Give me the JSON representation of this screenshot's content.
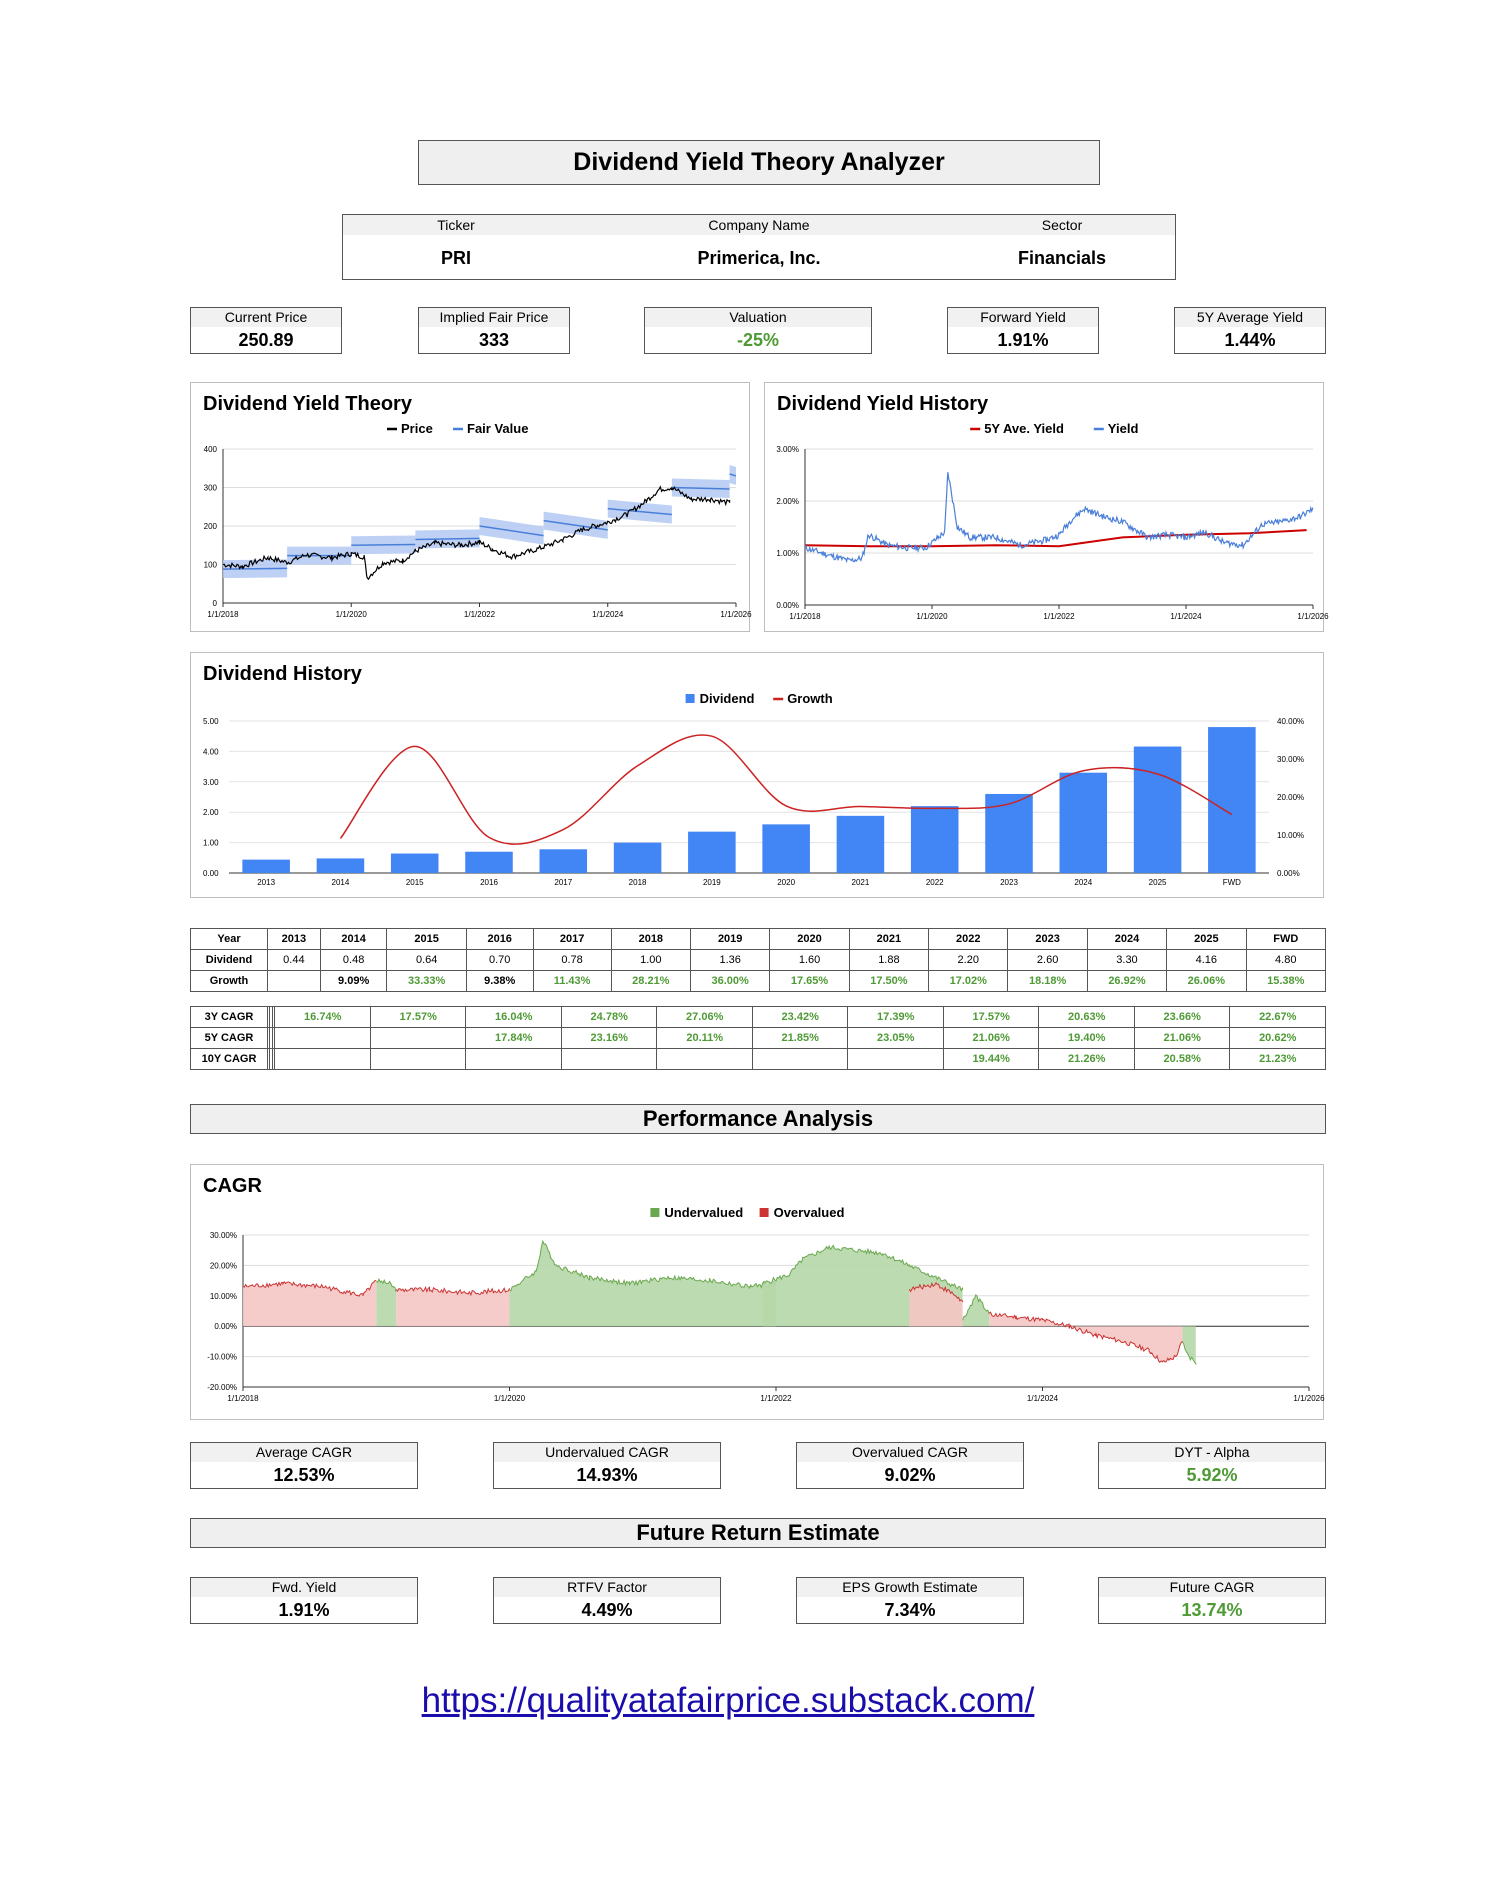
{
  "title": "Dividend Yield Theory Analyzer",
  "info": {
    "ticker_label": "Ticker",
    "ticker": "PRI",
    "company_label": "Company Name",
    "company": "Primerica, Inc.",
    "sector_label": "Sector",
    "sector": "Financials"
  },
  "metrics": [
    {
      "label": "Current Price",
      "value": "250.89"
    },
    {
      "label": "Implied Fair Price",
      "value": "333"
    },
    {
      "label": "Valuation",
      "value": "-25%"
    },
    {
      "label": "Forward Yield",
      "value": "1.91%"
    },
    {
      "label": "5Y Average Yield",
      "value": "1.44%"
    }
  ],
  "chart_data": [
    {
      "id": "dyt",
      "type": "line",
      "title": "Dividend Yield Theory",
      "legend": [
        "Price",
        "Fair Value"
      ],
      "legend_position": "top",
      "x_ticks": [
        "1/1/2018",
        "1/1/2020",
        "1/1/2022",
        "1/1/2024",
        "1/1/2026"
      ],
      "y_ticks": [
        "0",
        "100",
        "200",
        "300",
        "400"
      ],
      "xlim": [
        2018,
        2026
      ],
      "ylim": [
        0,
        400
      ],
      "grid": true,
      "series": [
        {
          "name": "Price",
          "color": "#000000",
          "x": [
            2018.0,
            2018.3,
            2018.7,
            2019.0,
            2019.3,
            2019.7,
            2020.0,
            2020.2,
            2020.25,
            2020.5,
            2020.8,
            2021.0,
            2021.3,
            2021.7,
            2022.0,
            2022.2,
            2022.5,
            2022.8,
            2023.0,
            2023.3,
            2023.6,
            2023.8,
            2024.0,
            2024.3,
            2024.6,
            2024.8,
            2025.0,
            2025.3,
            2025.6,
            2025.9
          ],
          "y": [
            100,
            95,
            118,
            105,
            125,
            118,
            128,
            120,
            65,
            105,
            110,
            135,
            155,
            150,
            158,
            140,
            120,
            135,
            145,
            165,
            190,
            200,
            210,
            230,
            265,
            295,
            300,
            270,
            270,
            260
          ]
        },
        {
          "name": "Fair Value",
          "color": "#4a7fd9",
          "x": [
            2018.0,
            2019.0,
            2019.0,
            2020.0,
            2020.0,
            2021.0,
            2021.0,
            2022.0,
            2022.0,
            2023.0,
            2023.0,
            2024.0,
            2024.0,
            2025.0,
            2025.0,
            2025.9,
            2025.9,
            2026.0
          ],
          "y": [
            88,
            90,
            123,
            123,
            150,
            152,
            165,
            168,
            200,
            175,
            214,
            190,
            245,
            230,
            300,
            296,
            335,
            330
          ]
        }
      ]
    },
    {
      "id": "yield",
      "type": "line",
      "title": "Dividend Yield History",
      "legend": [
        "5Y Ave. Yield",
        "Yield"
      ],
      "legend_position": "top",
      "x_ticks": [
        "1/1/2018",
        "1/1/2020",
        "1/1/2022",
        "1/1/2024",
        "1/1/2026"
      ],
      "y_ticks": [
        "0.00%",
        "1.00%",
        "2.00%",
        "3.00%"
      ],
      "xlim": [
        2018,
        2026
      ],
      "ylim": [
        0,
        3
      ],
      "grid": true,
      "series": [
        {
          "name": "5Y Ave. Yield",
          "color": "#cc0000",
          "x": [
            2018.0,
            2019.0,
            2020.0,
            2021.0,
            2022.0,
            2023.0,
            2024.0,
            2025.0,
            2025.9
          ],
          "y": [
            1.15,
            1.13,
            1.13,
            1.15,
            1.13,
            1.3,
            1.35,
            1.38,
            1.44
          ]
        },
        {
          "name": "Yield",
          "color": "#4a7fd9",
          "x": [
            2018.0,
            2018.4,
            2018.7,
            2018.9,
            2019.0,
            2019.3,
            2019.6,
            2019.9,
            2020.1,
            2020.2,
            2020.25,
            2020.4,
            2020.6,
            2021.0,
            2021.4,
            2021.8,
            2022.0,
            2022.2,
            2022.4,
            2022.7,
            2023.0,
            2023.4,
            2023.7,
            2024.0,
            2024.3,
            2024.6,
            2024.9,
            2025.2,
            2025.5,
            2025.8,
            2026.0
          ],
          "y": [
            1.1,
            0.95,
            0.85,
            0.9,
            1.35,
            1.15,
            1.1,
            1.1,
            1.3,
            1.4,
            2.55,
            1.5,
            1.3,
            1.3,
            1.15,
            1.25,
            1.35,
            1.65,
            1.85,
            1.7,
            1.6,
            1.3,
            1.35,
            1.3,
            1.4,
            1.2,
            1.15,
            1.55,
            1.6,
            1.7,
            1.85
          ]
        }
      ]
    },
    {
      "id": "divhist",
      "type": "bar",
      "title": "Dividend History",
      "legend": [
        "Dividend",
        "Growth"
      ],
      "legend_position": "top",
      "categories": [
        "2013",
        "2014",
        "2015",
        "2016",
        "2017",
        "2018",
        "2019",
        "2020",
        "2021",
        "2022",
        "2023",
        "2024",
        "2025",
        "FWD"
      ],
      "y_ticks": [
        "0.00",
        "1.00",
        "2.00",
        "3.00",
        "4.00",
        "5.00"
      ],
      "y2_ticks": [
        "0.00%",
        "10.00%",
        "20.00%",
        "30.00%",
        "40.00%"
      ],
      "ylim": [
        0,
        5
      ],
      "y2lim": [
        0,
        40
      ],
      "series": [
        {
          "name": "Dividend",
          "type": "bar",
          "color": "#4285f4",
          "values": [
            0.44,
            0.48,
            0.64,
            0.7,
            0.78,
            1.0,
            1.36,
            1.6,
            1.88,
            2.2,
            2.6,
            3.3,
            4.16,
            4.8
          ]
        },
        {
          "name": "Growth",
          "type": "line",
          "axis": "right",
          "color": "#cc2222",
          "values": [
            null,
            9.09,
            33.33,
            9.38,
            11.43,
            28.21,
            36.0,
            17.65,
            17.5,
            17.02,
            18.18,
            26.92,
            26.06,
            15.38
          ]
        }
      ]
    },
    {
      "id": "cagr",
      "type": "area",
      "title": "CAGR",
      "legend": [
        "Undervalued",
        "Overvalued"
      ],
      "legend_position": "top",
      "x_ticks": [
        "1/1/2018",
        "1/1/2020",
        "1/1/2022",
        "1/1/2024",
        "1/1/2026"
      ],
      "y_ticks": [
        "-20.00%",
        "-10.00%",
        "0.00%",
        "10.00%",
        "20.00%",
        "30.00%"
      ],
      "xlim": [
        2018,
        2026
      ],
      "ylim": [
        -20,
        30
      ],
      "grid": true,
      "series": [
        {
          "name": "Undervalued",
          "color": "#6aa84f",
          "fill": "#b6d7a8",
          "segments": [
            {
              "x": [
                2019.0,
                2019.1,
                2019.15
              ],
              "y": [
                15,
                14,
                12
              ]
            },
            {
              "x": [
                2020.0,
                2020.2,
                2020.25,
                2020.35,
                2020.6,
                2020.9,
                2021.2,
                2021.5,
                2021.8,
                2022.0
              ],
              "y": [
                12,
                18,
                28,
                20,
                16,
                14,
                16,
                15,
                13,
                14
              ]
            },
            {
              "x": [
                2021.9,
                2022.1,
                2022.2,
                2022.4,
                2022.6,
                2022.8,
                2023.0,
                2023.4
              ],
              "y": [
                14,
                17,
                22,
                26,
                25,
                24,
                20,
                12
              ]
            },
            {
              "x": [
                2023.4,
                2023.5,
                2023.6
              ],
              "y": [
                2,
                10,
                4
              ]
            },
            {
              "x": [
                2025.05,
                2025.1,
                2025.15
              ],
              "y": [
                -5,
                -10,
                -12
              ]
            }
          ]
        },
        {
          "name": "Overvalued",
          "color": "#cc3333",
          "fill": "#f4c7c3",
          "segments": [
            {
              "x": [
                2018.0,
                2018.3,
                2018.6,
                2018.9,
                2019.0
              ],
              "y": [
                13,
                14,
                13,
                10,
                15
              ]
            },
            {
              "x": [
                2019.15,
                2019.4,
                2019.7,
                2020.0
              ],
              "y": [
                12,
                12,
                11,
                12
              ]
            },
            {
              "x": [
                2023.0,
                2023.2,
                2023.35,
                2023.4
              ],
              "y": [
                12,
                14,
                10,
                8
              ]
            },
            {
              "x": [
                2023.6,
                2023.8,
                2024.0,
                2024.2,
                2024.4,
                2024.6,
                2024.8,
                2024.9,
                2025.0,
                2025.05
              ],
              "y": [
                4,
                3,
                2,
                0,
                -3,
                -5,
                -8,
                -12,
                -10,
                -5
              ]
            }
          ]
        }
      ]
    }
  ],
  "table": {
    "headers": [
      "Year",
      "2013",
      "2014",
      "2015",
      "2016",
      "2017",
      "2018",
      "2019",
      "2020",
      "2021",
      "2022",
      "2023",
      "2024",
      "2025",
      "FWD"
    ],
    "dividend_label": "Dividend",
    "dividend": [
      "0.44",
      "0.48",
      "0.64",
      "0.70",
      "0.78",
      "1.00",
      "1.36",
      "1.60",
      "1.88",
      "2.20",
      "2.60",
      "3.30",
      "4.16",
      "4.80"
    ],
    "growth_label": "Growth",
    "growth": [
      "",
      "9.09%",
      "33.33%",
      "9.38%",
      "11.43%",
      "28.21%",
      "36.00%",
      "17.65%",
      "17.50%",
      "17.02%",
      "18.18%",
      "26.92%",
      "26.06%",
      "15.38%"
    ],
    "cagr3_label": "3Y CAGR",
    "cagr3": [
      "",
      "",
      "",
      "16.74%",
      "17.57%",
      "16.04%",
      "24.78%",
      "27.06%",
      "23.42%",
      "17.39%",
      "17.57%",
      "20.63%",
      "23.66%",
      "22.67%"
    ],
    "cagr5_label": "5Y CAGR",
    "cagr5": [
      "",
      "",
      "",
      "",
      "",
      "17.84%",
      "23.16%",
      "20.11%",
      "21.85%",
      "23.05%",
      "21.06%",
      "19.40%",
      "21.06%",
      "20.62%"
    ],
    "cagr10_label": "10Y CAGR",
    "cagr10": [
      "",
      "",
      "",
      "",
      "",
      "",
      "",
      "",
      "",
      "",
      "19.44%",
      "21.26%",
      "20.58%",
      "21.23%"
    ]
  },
  "performance_title": "Performance Analysis",
  "performance_metrics": [
    {
      "label": "Average CAGR",
      "value": "12.53%"
    },
    {
      "label": "Undervalued CAGR",
      "value": "14.93%"
    },
    {
      "label": "Overvalued CAGR",
      "value": "9.02%"
    },
    {
      "label": "DYT - Alpha",
      "value": "5.92%"
    }
  ],
  "future_title": "Future Return Estimate",
  "future_metrics": [
    {
      "label": "Fwd. Yield",
      "value": "1.91%"
    },
    {
      "label": "RTFV Factor",
      "value": "4.49%"
    },
    {
      "label": "EPS Growth Estimate",
      "value": "7.34%"
    },
    {
      "label": "Future CAGR",
      "value": "13.74%"
    }
  ],
  "link": "https://qualityatafairprice.substack.com/"
}
